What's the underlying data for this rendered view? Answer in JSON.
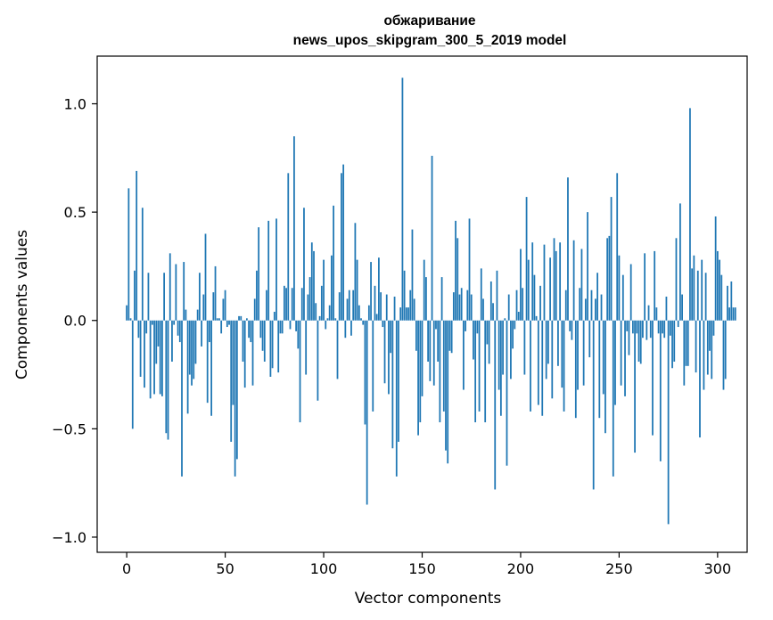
{
  "chart_data": {
    "type": "bar",
    "title": "обжаривание",
    "subtitle": "news_upos_skipgram_300_5_2019 model",
    "xlabel": "Vector components",
    "ylabel": "Components values",
    "xlim": [
      -15,
      315
    ],
    "ylim": [
      -1.07,
      1.22
    ],
    "xticks": [
      0,
      50,
      100,
      150,
      200,
      250,
      300
    ],
    "xtick_labels": [
      "0",
      "50",
      "100",
      "150",
      "200",
      "250",
      "300"
    ],
    "yticks": [
      -1.0,
      -0.5,
      0.0,
      0.5,
      1.0
    ],
    "ytick_labels": [
      "−1.0",
      "−0.5",
      "0.0",
      "0.5",
      "1.0"
    ],
    "bar_color": "#1f77b4",
    "grid": false,
    "values": [
      0.07,
      0.61,
      0.01,
      -0.5,
      0.23,
      0.69,
      -0.08,
      -0.26,
      0.52,
      -0.31,
      -0.06,
      0.22,
      -0.36,
      -0.02,
      -0.34,
      -0.2,
      -0.12,
      -0.34,
      -0.35,
      0.22,
      -0.52,
      -0.55,
      0.31,
      -0.19,
      -0.02,
      0.26,
      -0.07,
      -0.1,
      -0.72,
      0.27,
      0.05,
      -0.43,
      -0.25,
      -0.3,
      -0.27,
      -0.2,
      0.05,
      0.22,
      -0.12,
      0.12,
      0.4,
      -0.38,
      -0.1,
      -0.44,
      0.13,
      0.25,
      0.01,
      0.01,
      -0.06,
      0.1,
      0.14,
      -0.03,
      -0.02,
      -0.56,
      -0.39,
      -0.72,
      -0.64,
      0.02,
      0.02,
      -0.19,
      -0.31,
      0.01,
      -0.08,
      -0.1,
      -0.3,
      0.1,
      0.23,
      0.43,
      -0.08,
      -0.14,
      -0.19,
      0.14,
      0.46,
      -0.26,
      -0.22,
      0.04,
      0.47,
      -0.24,
      -0.06,
      -0.06,
      0.16,
      0.15,
      0.68,
      -0.04,
      0.15,
      0.85,
      -0.05,
      -0.13,
      -0.47,
      0.15,
      0.52,
      -0.25,
      0.12,
      0.2,
      0.36,
      0.32,
      0.08,
      -0.37,
      0.02,
      0.16,
      0.28,
      -0.04,
      0.01,
      0.07,
      0.3,
      0.53,
      0.01,
      -0.27,
      0.13,
      0.68,
      0.72,
      -0.08,
      0.1,
      0.14,
      -0.07,
      0.14,
      0.45,
      0.28,
      0.07,
      0.01,
      -0.02,
      -0.48,
      -0.85,
      0.07,
      0.27,
      -0.42,
      0.16,
      0.03,
      0.29,
      0.13,
      -0.03,
      -0.29,
      0.12,
      -0.34,
      -0.15,
      -0.59,
      0.11,
      -0.72,
      -0.56,
      0.06,
      1.12,
      0.23,
      0.06,
      0.06,
      0.14,
      0.42,
      0.1,
      -0.14,
      -0.53,
      -0.47,
      -0.35,
      0.28,
      0.2,
      -0.19,
      -0.28,
      0.76,
      -0.3,
      -0.04,
      -0.19,
      -0.47,
      0.2,
      -0.42,
      -0.6,
      -0.66,
      -0.14,
      -0.15,
      0.13,
      0.46,
      0.38,
      0.12,
      0.15,
      -0.32,
      -0.05,
      0.14,
      0.47,
      0.12,
      -0.18,
      -0.47,
      -0.06,
      -0.42,
      0.24,
      0.1,
      -0.47,
      -0.11,
      -0.2,
      0.18,
      0.08,
      -0.78,
      0.23,
      -0.32,
      -0.44,
      -0.25,
      0.01,
      -0.67,
      0.12,
      -0.27,
      -0.13,
      -0.04,
      0.14,
      0.04,
      0.33,
      0.15,
      -0.25,
      0.57,
      0.28,
      -0.42,
      0.36,
      0.21,
      0.02,
      -0.39,
      0.16,
      -0.44,
      0.35,
      -0.27,
      -0.2,
      0.29,
      -0.36,
      0.38,
      0.32,
      -0.21,
      0.36,
      -0.31,
      -0.42,
      0.14,
      0.66,
      -0.05,
      -0.09,
      0.37,
      -0.45,
      -0.32,
      0.15,
      0.33,
      -0.3,
      0.1,
      0.5,
      -0.17,
      0.14,
      -0.78,
      0.1,
      0.22,
      -0.45,
      0.12,
      -0.34,
      -0.52,
      0.38,
      0.39,
      0.57,
      -0.72,
      -0.39,
      0.68,
      0.3,
      -0.3,
      0.21,
      -0.35,
      -0.05,
      -0.16,
      0.26,
      -0.06,
      -0.61,
      -0.06,
      -0.19,
      -0.2,
      -0.08,
      0.31,
      -0.09,
      0.07,
      -0.08,
      -0.53,
      0.32,
      0.06,
      -0.06,
      -0.65,
      -0.06,
      -0.08,
      0.11,
      -0.94,
      -0.07,
      -0.22,
      -0.19,
      0.38,
      -0.03,
      0.54,
      0.12,
      -0.3,
      -0.21,
      -0.21,
      0.98,
      0.24,
      0.3,
      -0.24,
      0.23,
      -0.54,
      0.28,
      -0.32,
      0.22,
      -0.25,
      -0.14,
      -0.27,
      -0.07,
      0.48,
      0.32,
      0.28,
      0.21,
      -0.32,
      -0.27,
      0.16,
      0.06,
      0.18,
      0.06,
      0.06
    ]
  }
}
